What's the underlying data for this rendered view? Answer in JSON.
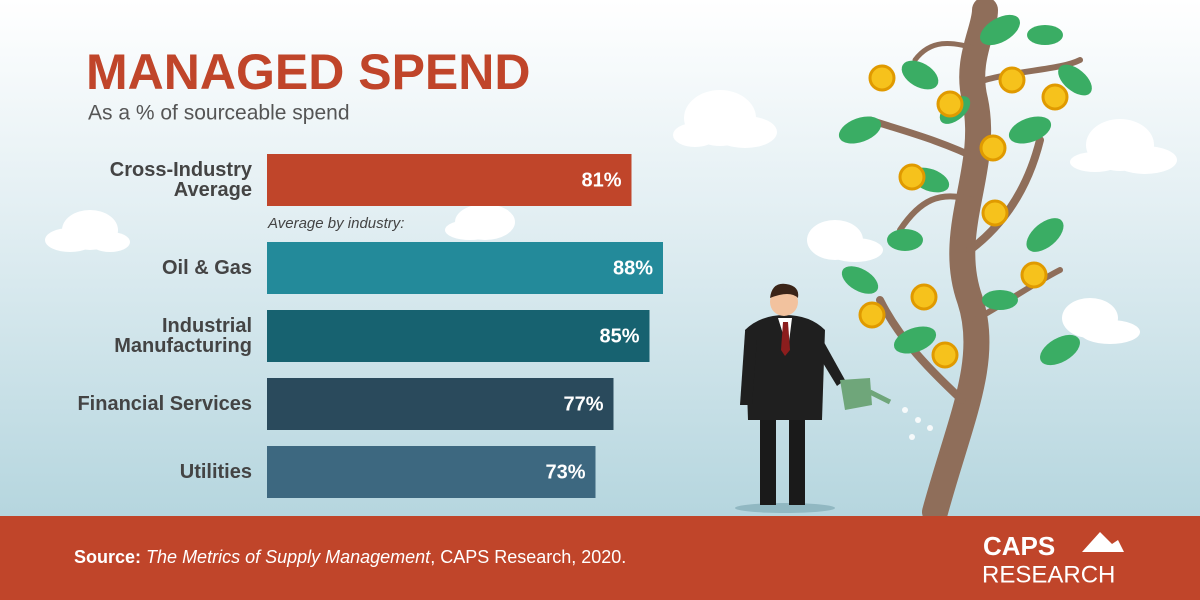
{
  "chart_data": {
    "type": "bar",
    "orientation": "horizontal",
    "title": "MANAGED SPEND",
    "subtitle": "As a % of sourceable spend",
    "annotation": "Average by industry:",
    "categories": [
      "Cross-Industry Average",
      "Oil & Gas",
      "Industrial Manufacturing",
      "Financial Services",
      "Utilities"
    ],
    "values": [
      81,
      88,
      85,
      77,
      73
    ],
    "value_labels": [
      "81%",
      "88%",
      "85%",
      "77%",
      "73%"
    ],
    "colors": [
      "#c0452a",
      "#238a9a",
      "#176270",
      "#2a4a5c",
      "#3d6880"
    ],
    "xlim": [
      0,
      100
    ],
    "grid": false
  },
  "footer": {
    "source_label": "Source:",
    "source_title": "The Metrics of Supply Management",
    "source_rest": ", CAPS Research, 2020.",
    "logo_top": "CAPS",
    "logo_bottom": "RESEARCH"
  }
}
